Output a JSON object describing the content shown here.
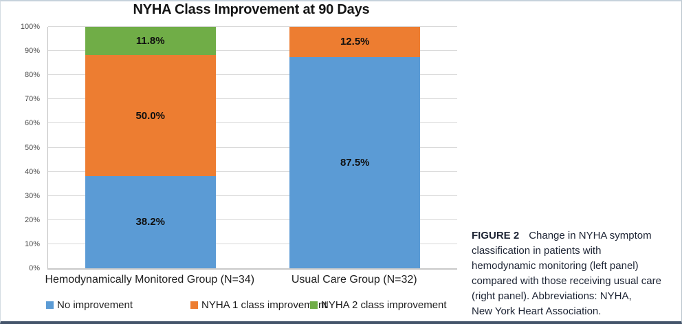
{
  "chart_data": {
    "type": "bar",
    "subtype": "stacked-percentage",
    "title": "NYHA Class Improvement at 90 Days",
    "categories": [
      "Hemodynamically Monitored Group (N=34)",
      "Usual Care Group (N=32)"
    ],
    "series": [
      {
        "name": "No improvement",
        "color": "#5B9BD5",
        "values": [
          38.2,
          87.5
        ]
      },
      {
        "name": "NYHA 1 class improvement",
        "color": "#ED7D31",
        "values": [
          50.0,
          12.5
        ]
      },
      {
        "name": "NYHA 2 class improvement",
        "color": "#70AD47",
        "values": [
          11.8,
          0
        ]
      }
    ],
    "data_labels": [
      [
        "38.2%",
        "50.0%",
        "11.8%"
      ],
      [
        "87.5%",
        "12.5%",
        ""
      ]
    ],
    "xlabel": "",
    "ylabel": "",
    "ylim": [
      0,
      100
    ],
    "ytick_step": 10,
    "ytick_labels": [
      "0%",
      "10%",
      "20%",
      "30%",
      "40%",
      "50%",
      "60%",
      "70%",
      "80%",
      "90%",
      "100%"
    ],
    "grid": true,
    "legend_position": "bottom"
  },
  "caption": {
    "label": "FIGURE 2",
    "lines": [
      "Change in NYHA symptom",
      "classification in patients with",
      "hemodynamic monitoring (left panel)",
      "compared with those receiving usual care",
      "(right panel). Abbreviations: NYHA,",
      "New York Heart Association."
    ]
  },
  "colors": {
    "bottom_border": "#44546A",
    "gridline": "#D9D9D9",
    "axis": "#BFBFBF"
  }
}
